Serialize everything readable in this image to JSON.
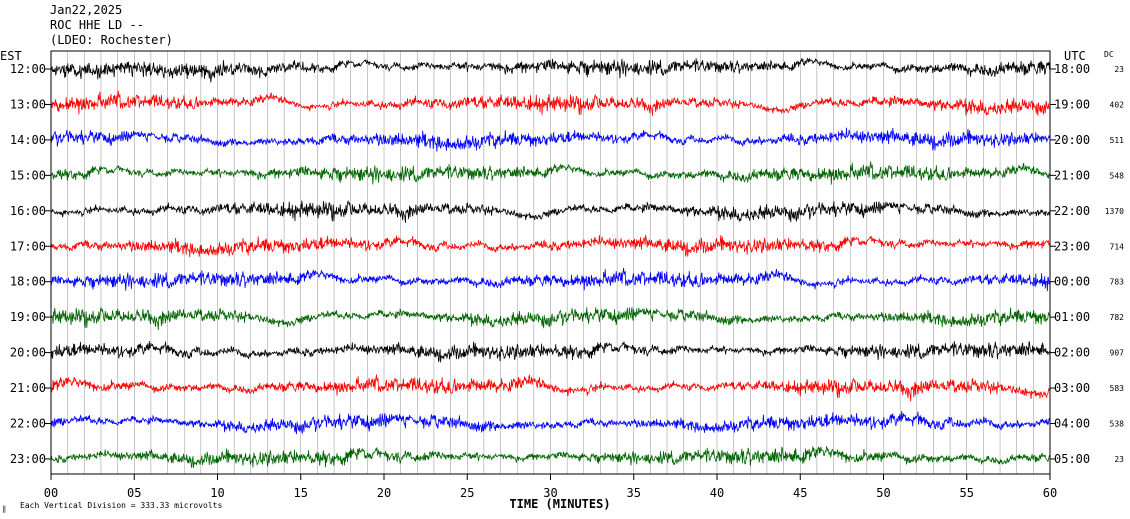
{
  "header": {
    "date": "Jan22,2025",
    "station": "ROC HHE LD --",
    "network": "(LDEO: Rochester)"
  },
  "footer": {
    "scale_note": "Each Vertical Division =  333.33 microvolts",
    "corner_mark": "‖"
  },
  "chart_data": {
    "type": "line",
    "title": "",
    "xlabel": "TIME (MINUTES)",
    "left_axis_title": "EST",
    "right_axis_title": "UTC",
    "dc_title": "DC",
    "xlim": [
      0,
      60
    ],
    "x_ticks": [
      "00",
      "05",
      "10",
      "15",
      "20",
      "25",
      "30",
      "35",
      "40",
      "45",
      "50",
      "55",
      "60"
    ],
    "x_tick_values": [
      0,
      5,
      10,
      15,
      20,
      25,
      30,
      35,
      40,
      45,
      50,
      55,
      60
    ],
    "grid": true,
    "colors": {
      "black": "#000000",
      "red": "#ff0000",
      "blue": "#0000ff",
      "green": "#006400"
    },
    "rows": [
      {
        "est": "12:00",
        "utc": "18:00",
        "dc": "23",
        "color": "black"
      },
      {
        "est": "13:00",
        "utc": "19:00",
        "dc": "402",
        "color": "red"
      },
      {
        "est": "14:00",
        "utc": "20:00",
        "dc": "511",
        "color": "blue"
      },
      {
        "est": "15:00",
        "utc": "21:00",
        "dc": "548",
        "color": "green"
      },
      {
        "est": "16:00",
        "utc": "22:00",
        "dc": "1370",
        "color": "black"
      },
      {
        "est": "17:00",
        "utc": "23:00",
        "dc": "714",
        "color": "red"
      },
      {
        "est": "18:00",
        "utc": "00:00",
        "dc": "783",
        "color": "blue"
      },
      {
        "est": "19:00",
        "utc": "01:00",
        "dc": "782",
        "color": "green"
      },
      {
        "est": "20:00",
        "utc": "02:00",
        "dc": "907",
        "color": "black"
      },
      {
        "est": "21:00",
        "utc": "03:00",
        "dc": "583",
        "color": "red"
      },
      {
        "est": "22:00",
        "utc": "04:00",
        "dc": "538",
        "color": "blue"
      },
      {
        "est": "23:00",
        "utc": "05:00",
        "dc": "23",
        "color": "green"
      }
    ]
  }
}
